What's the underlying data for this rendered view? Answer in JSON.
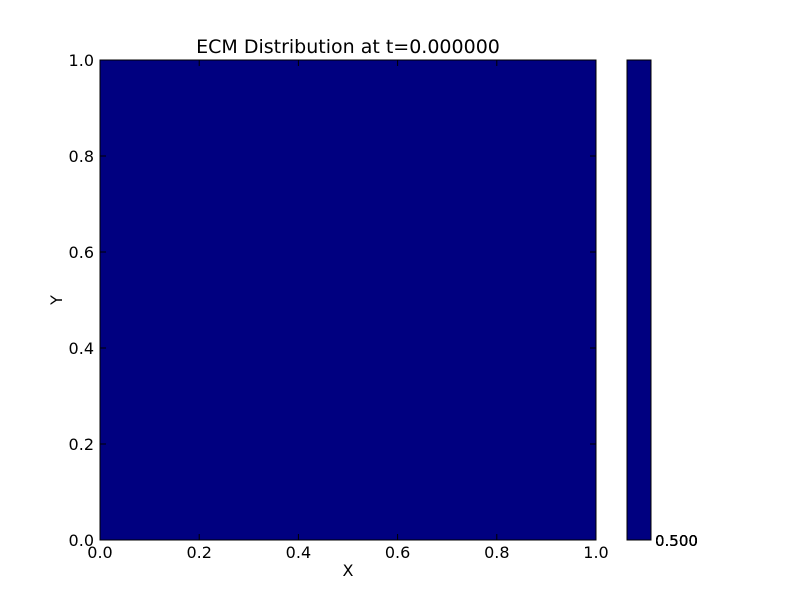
{
  "chart_data": {
    "type": "heatmap",
    "title": "ECM Distribution at t=0.000000",
    "xlabel": "X",
    "ylabel": "Y",
    "xlim": [
      0.0,
      1.0
    ],
    "ylim": [
      0.0,
      1.0
    ],
    "x_ticks": [
      "0.0",
      "0.2",
      "0.4",
      "0.6",
      "0.8",
      "1.0"
    ],
    "y_ticks": [
      "0.0",
      "0.2",
      "0.4",
      "0.6",
      "0.8",
      "1.0"
    ],
    "grid": false,
    "uniform_value_color": "#000080",
    "colorbar": {
      "color": "#000080",
      "tick_labels": [
        "0.500",
        "0.500",
        "0.500",
        "0.500",
        "0.500"
      ]
    }
  }
}
